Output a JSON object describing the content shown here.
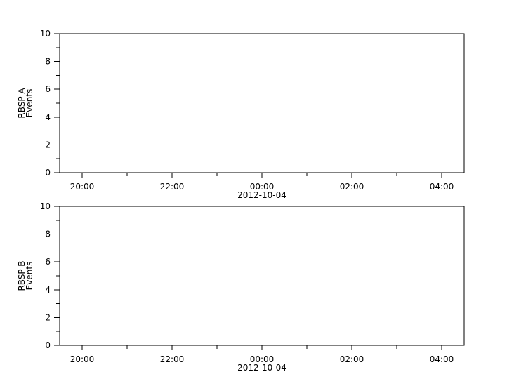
{
  "chart_data": [
    {
      "type": "line",
      "ylabel": [
        "RBSP-A",
        "Events"
      ],
      "ylim": [
        0,
        10
      ],
      "yticks": [
        "0",
        "2",
        "4",
        "6",
        "8",
        "10"
      ],
      "xlim": [
        "19:30",
        "04:30"
      ],
      "xticks": [
        "20:00",
        "22:00",
        "00:00",
        "02:00",
        "04:00"
      ],
      "date_label": "2012-10-04",
      "date_label_under": "00:00",
      "series": [],
      "grid": false
    },
    {
      "type": "line",
      "ylabel": [
        "RBSP-B",
        "Events"
      ],
      "ylim": [
        0,
        10
      ],
      "yticks": [
        "0",
        "2",
        "4",
        "6",
        "8",
        "10"
      ],
      "xlim": [
        "19:30",
        "04:30"
      ],
      "xticks": [
        "20:00",
        "22:00",
        "00:00",
        "02:00",
        "04:00"
      ],
      "date_label": "2012-10-04",
      "date_label_under": "00:00",
      "series": [],
      "grid": false
    }
  ]
}
